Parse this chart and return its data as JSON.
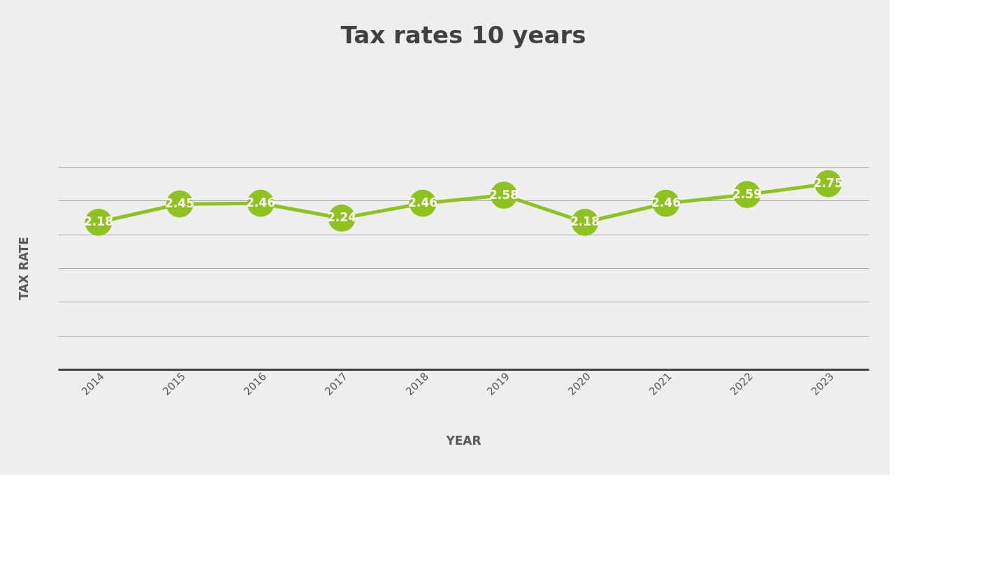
{
  "chart_data": {
    "type": "line",
    "title": "Tax rates 10 years",
    "xlabel": "YEAR",
    "ylabel": "TAX RATE",
    "categories": [
      "2014",
      "2015",
      "2016",
      "2017",
      "2018",
      "2019",
      "2020",
      "2021",
      "2022",
      "2023"
    ],
    "series": [
      {
        "color": "#8dc21f",
        "values": [
          2.18,
          2.45,
          2.46,
          2.24,
          2.46,
          2.58,
          2.18,
          2.46,
          2.59,
          2.75
        ]
      }
    ],
    "ylim": [
      0,
      3
    ],
    "yticks": [
      {
        "value": 0,
        "label": null
      },
      {
        "value": 0.5,
        "label": null
      },
      {
        "value": 1,
        "label": null
      },
      {
        "value": 1.5,
        "label": null
      },
      {
        "value": 2,
        "label": null
      },
      {
        "value": 2.5,
        "label": null
      },
      {
        "value": 3,
        "label": null
      }
    ],
    "tick_labels": "x",
    "grid": "y",
    "marker": "circle",
    "line_style": "solid",
    "data_labels": true
  }
}
